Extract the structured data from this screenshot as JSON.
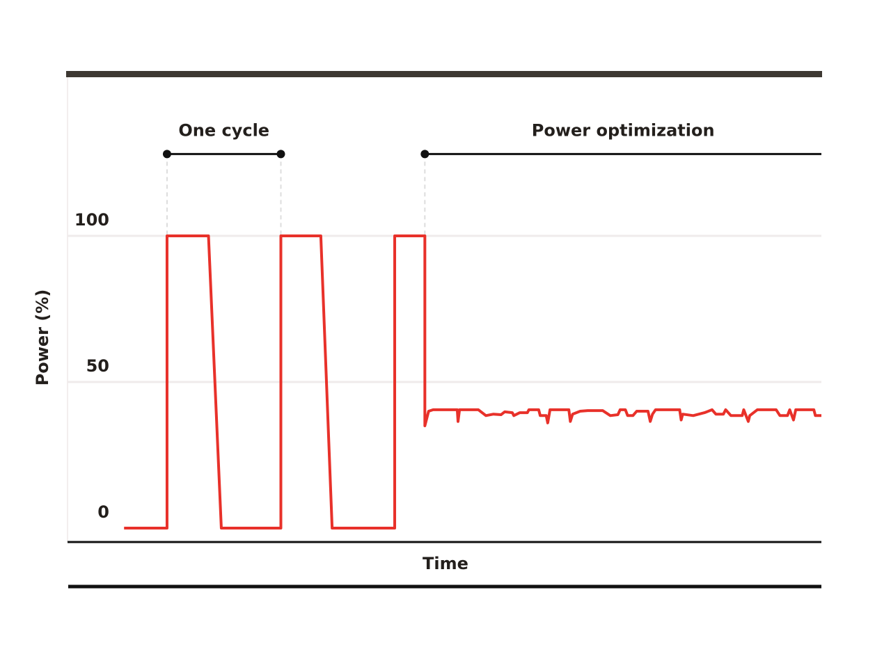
{
  "chart_data": {
    "type": "line",
    "y_label": "Power (%)",
    "x_label": "Time",
    "color": "#e8312a",
    "xlim": [
      0,
      100
    ],
    "ylim": [
      -5,
      155
    ],
    "yticks": [
      0,
      50,
      100
    ],
    "grid": true,
    "x": [
      7.5,
      13.2,
      13.2,
      18.7,
      20.4,
      28.3,
      28.3,
      33.6,
      35.1,
      43.4,
      43.4,
      47.4,
      47.4,
      47.9,
      48.5,
      50,
      51.7,
      51.8,
      52,
      54.5,
      55.5,
      56.5,
      57.5,
      58,
      59,
      59.2,
      60,
      61,
      61.2,
      62.5,
      62.7,
      63.5,
      63.7,
      64,
      66.5,
      66.7,
      67,
      68,
      69,
      71,
      72,
      73,
      73.3,
      74,
      74.3,
      75,
      75.5,
      77,
      77.3,
      77.6,
      78,
      81.2,
      81.4,
      81.6,
      83,
      84.5,
      85.5,
      86,
      87,
      87.3,
      88,
      89.5,
      89.7,
      90.3,
      90.5,
      91.5,
      94,
      94.5,
      95.5,
      95.8,
      96.3,
      96.6,
      99,
      99.2,
      100
    ],
    "values": [
      0,
      0,
      100,
      100,
      0,
      0,
      100,
      100,
      0,
      0,
      100,
      100,
      35,
      40,
      40.5,
      40.5,
      40.5,
      36.5,
      40.5,
      40.5,
      38.5,
      39,
      38.8,
      39.8,
      39.5,
      38.5,
      39.5,
      39.5,
      40.5,
      40.5,
      38.5,
      38.5,
      36,
      40.5,
      40.5,
      36.5,
      39,
      40,
      40.2,
      40.2,
      38.5,
      38.8,
      40.5,
      40.5,
      38.5,
      38.5,
      40,
      40,
      36.5,
      39,
      40.5,
      40.5,
      37,
      39,
      38.5,
      39.5,
      40.5,
      39,
      39,
      40.5,
      38.5,
      38.5,
      40.5,
      36.5,
      38.5,
      40.5,
      40.5,
      38.5,
      38.5,
      40.5,
      37,
      40.5,
      40.5,
      38.5,
      38.5
    ],
    "annotations": [
      {
        "text": "One cycle",
        "x": [
          13.2,
          28.3
        ],
        "y": 128
      },
      {
        "text": "Power optimization",
        "x": [
          47.4,
          100
        ],
        "y": 128
      }
    ]
  }
}
